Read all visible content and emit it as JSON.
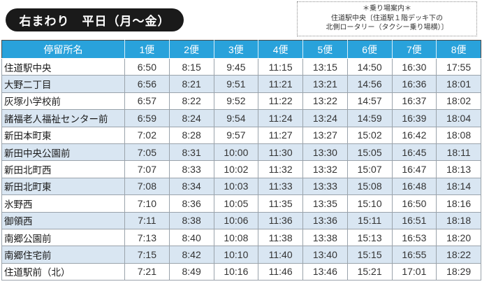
{
  "title": "右まわり　平日（月〜金）",
  "info_box": {
    "line1": "＊乗り場案内＊",
    "line2": "住道駅中央〔住道駅１階デッキ下の",
    "line3": "北側ロータリー（タクシー乗り場横）〕"
  },
  "table": {
    "stop_header": "停留所名",
    "trip_headers": [
      "1便",
      "2便",
      "3便",
      "4便",
      "5便",
      "6便",
      "7便",
      "8便"
    ],
    "rows": [
      {
        "name": "住道駅中央",
        "times": [
          "6:50",
          "8:15",
          "9:45",
          "11:15",
          "13:15",
          "14:50",
          "16:30",
          "17:55"
        ]
      },
      {
        "name": "大野二丁目",
        "times": [
          "6:56",
          "8:21",
          "9:51",
          "11:21",
          "13:21",
          "14:56",
          "16:36",
          "18:01"
        ]
      },
      {
        "name": "灰塚小学校前",
        "times": [
          "6:57",
          "8:22",
          "9:52",
          "11:22",
          "13:22",
          "14:57",
          "16:37",
          "18:02"
        ]
      },
      {
        "name": "諸福老人福祉センター前",
        "times": [
          "6:59",
          "8:24",
          "9:54",
          "11:24",
          "13:24",
          "14:59",
          "16:39",
          "18:04"
        ]
      },
      {
        "name": "新田本町東",
        "times": [
          "7:02",
          "8:28",
          "9:57",
          "11:27",
          "13:27",
          "15:02",
          "16:42",
          "18:08"
        ]
      },
      {
        "name": "新田中央公園前",
        "times": [
          "7:05",
          "8:31",
          "10:00",
          "11:30",
          "13:30",
          "15:05",
          "16:45",
          "18:11"
        ]
      },
      {
        "name": "新田北町西",
        "times": [
          "7:07",
          "8:33",
          "10:02",
          "11:32",
          "13:32",
          "15:07",
          "16:47",
          "18:13"
        ]
      },
      {
        "name": "新田北町東",
        "times": [
          "7:08",
          "8:34",
          "10:03",
          "11:33",
          "13:33",
          "15:08",
          "16:48",
          "18:14"
        ]
      },
      {
        "name": "氷野西",
        "times": [
          "7:10",
          "8:36",
          "10:05",
          "11:35",
          "13:35",
          "15:10",
          "16:50",
          "18:16"
        ]
      },
      {
        "name": "御領西",
        "times": [
          "7:11",
          "8:38",
          "10:06",
          "11:36",
          "13:36",
          "15:11",
          "16:51",
          "18:18"
        ]
      },
      {
        "name": "南郷公園前",
        "times": [
          "7:13",
          "8:40",
          "10:08",
          "11:38",
          "13:38",
          "15:13",
          "16:53",
          "18:20"
        ]
      },
      {
        "name": "南郷住宅前",
        "times": [
          "7:15",
          "8:42",
          "10:10",
          "11:40",
          "13:40",
          "15:15",
          "16:55",
          "18:22"
        ]
      },
      {
        "name": "住道駅前（北）",
        "times": [
          "7:21",
          "8:49",
          "10:16",
          "11:46",
          "13:46",
          "15:21",
          "17:01",
          "18:29"
        ]
      }
    ]
  },
  "colors": {
    "header_bg": "#29a2db",
    "row_alt_bg": "#d9e6f2",
    "title_bg": "#1a1a1a"
  }
}
